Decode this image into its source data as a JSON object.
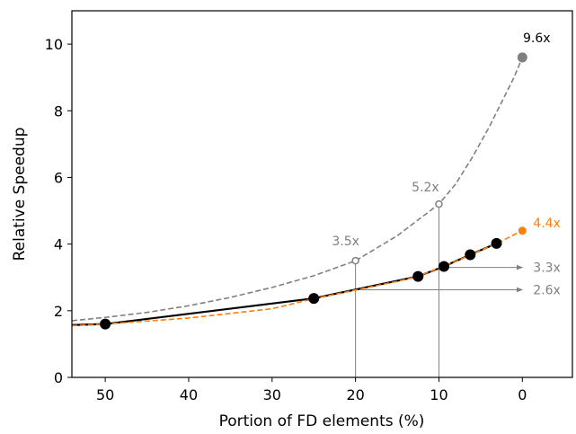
{
  "chart_data": {
    "type": "line",
    "title": "",
    "xlabel": "Portion of FD elements (%)",
    "ylabel": "Relative Speedup",
    "xlim": [
      54,
      -6
    ],
    "ylim": [
      0,
      11
    ],
    "x_ticks": [
      50,
      40,
      30,
      20,
      10,
      0
    ],
    "y_ticks": [
      0,
      2,
      4,
      6,
      8,
      10
    ],
    "grid": false,
    "legend": "none",
    "colors": {
      "black": "#000000",
      "orange": "#ff7f0e",
      "gray": "#808080"
    },
    "series": [
      {
        "style": "black solid line with markers",
        "color": "#000000",
        "x": [
          54,
          50,
          25,
          12.5,
          9.4,
          6.25,
          3.1
        ],
        "y": [
          1.57,
          1.6,
          2.37,
          3.03,
          3.33,
          3.68,
          4.02
        ]
      },
      {
        "style": "orange dashed fit",
        "color": "#ff7f0e",
        "x": [
          54,
          50,
          40,
          30,
          25,
          20,
          15,
          12.5,
          10,
          8,
          6,
          4,
          3.1,
          2,
          1,
          0
        ],
        "y": [
          1.55,
          1.6,
          1.78,
          2.06,
          2.36,
          2.62,
          2.88,
          3.03,
          3.28,
          3.48,
          3.7,
          3.92,
          4.02,
          4.15,
          4.28,
          4.4
        ]
      },
      {
        "style": "gray dashed theoretical",
        "color": "#808080",
        "x": [
          54,
          50,
          45,
          40,
          35,
          30,
          25,
          20,
          15,
          10,
          8,
          6,
          4,
          2,
          1,
          0
        ],
        "y": [
          1.7,
          1.8,
          1.95,
          2.15,
          2.4,
          2.7,
          3.05,
          3.5,
          4.25,
          5.2,
          5.8,
          6.6,
          7.5,
          8.5,
          9.0,
          9.6
        ]
      }
    ],
    "annotations": [
      {
        "text": "9.6x",
        "x": 0,
        "y": 9.6,
        "color": "#000000"
      },
      {
        "text": "4.4x",
        "x": 0,
        "y": 4.4,
        "color": "#ff7f0e"
      },
      {
        "text": "5.2x",
        "x": 10,
        "y": 5.2,
        "color": "#808080"
      },
      {
        "text": "3.5x",
        "x": 20,
        "y": 3.5,
        "color": "#808080"
      },
      {
        "text": "3.3x",
        "x": 9.4,
        "y": 3.3,
        "color": "#808080"
      },
      {
        "text": "2.6x",
        "x": 20,
        "y": 2.63,
        "color": "#808080"
      }
    ]
  }
}
